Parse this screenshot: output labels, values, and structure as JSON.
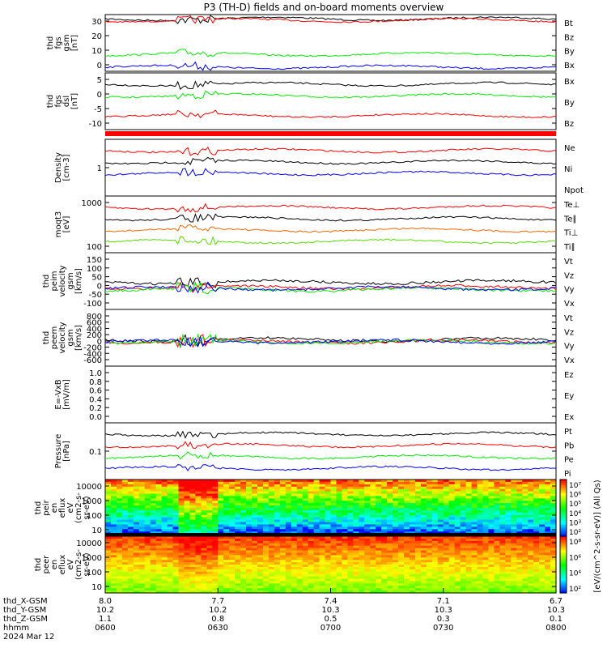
{
  "title": "P3 (TH-D) fields and on-board moments overview",
  "colors": {
    "black": "#000000",
    "red": "#ff0000",
    "green": "#00ee00",
    "blue": "#0000ff",
    "orange": "#ff6600",
    "lightgreen": "#55dd00"
  },
  "chart_data": [
    {
      "type": "line",
      "ylabel": [
        "thd",
        "fgs",
        "gsm",
        "[nT]"
      ],
      "yticks": [
        "30",
        "20",
        "10",
        "0"
      ],
      "ylim": [
        -4,
        36
      ],
      "legend": [
        {
          "name": "Bt",
          "color": "#000000"
        },
        {
          "name": "Bz",
          "color": "#ff0000"
        },
        {
          "name": "By",
          "color": "#00ee00"
        },
        {
          "name": "Bx",
          "color": "#0000ff"
        }
      ],
      "series": [
        {
          "name": "Bt",
          "level": 33
        },
        {
          "name": "Bz",
          "level": 32
        },
        {
          "name": "By",
          "level": 8
        },
        {
          "name": "Bx",
          "level": -1
        }
      ]
    },
    {
      "type": "line",
      "ylabel": [
        "thd",
        "fgs",
        "dsl",
        "[nT]"
      ],
      "yticks": [
        "5",
        "0",
        "-5",
        "-10"
      ],
      "ylim": [
        -14,
        6
      ],
      "legend": [
        {
          "name": "Bx",
          "color": "#000000"
        },
        {
          "name": "By",
          "color": "#00ee00"
        },
        {
          "name": "Bz",
          "color": "#ff0000"
        }
      ],
      "series": [
        {
          "name": "Bx",
          "level": 2
        },
        {
          "name": "By",
          "level": -2
        },
        {
          "name": "Bz",
          "level": -9
        }
      ]
    },
    {
      "type": "line",
      "ylabel": [
        "Density",
        "[cm-3]"
      ],
      "yticks": [
        "1"
      ],
      "log": true,
      "legend": [
        {
          "name": "Ne",
          "color": "#ff0000"
        },
        {
          "name": "Ni",
          "color": "#000000"
        },
        {
          "name": "Npot",
          "color": "#0000ff"
        }
      ],
      "series": [
        {
          "name": "Ne",
          "level": 0.55
        },
        {
          "name": "Ni",
          "level": 0.3
        },
        {
          "name": "Npot",
          "level": 0.4
        }
      ]
    },
    {
      "type": "line",
      "ylabel": [
        "moqt3",
        "[eV]"
      ],
      "yticks": [
        "1000",
        "100"
      ],
      "log": true,
      "legend": [
        {
          "name": "Te⊥",
          "color": "#ff0000"
        },
        {
          "name": "Te∥",
          "color": "#000000"
        },
        {
          "name": "Ti⊥",
          "color": "#ff6600"
        },
        {
          "name": "Ti∥",
          "color": "#55dd00"
        }
      ],
      "series": [
        {
          "name": "Te⊥",
          "level": 3000
        },
        {
          "name": "Te∥",
          "level": 2500
        },
        {
          "name": "Ti⊥",
          "level": 300
        },
        {
          "name": "Ti∥",
          "level": 250
        }
      ]
    },
    {
      "type": "line",
      "ylabel": [
        "thd",
        "peim",
        "velocity",
        "gsm",
        "[km/s]"
      ],
      "yticks": [
        "150",
        "100",
        "50",
        "0",
        "-50",
        "-100"
      ],
      "ylim": [
        -100,
        170
      ],
      "legend": [
        {
          "name": "Vt",
          "color": "#000000"
        },
        {
          "name": "Vz",
          "color": "#ff0000"
        },
        {
          "name": "Vy",
          "color": "#00ee00"
        },
        {
          "name": "Vx",
          "color": "#0000ff"
        }
      ],
      "series": [
        {
          "name": "Vt",
          "level": 30
        },
        {
          "name": "Vz",
          "level": 5
        },
        {
          "name": "Vy",
          "level": -5
        },
        {
          "name": "Vx",
          "level": 0
        }
      ]
    },
    {
      "type": "line",
      "ylabel": [
        "thd",
        "peem",
        "velocity",
        "gsm",
        "[km/s]"
      ],
      "yticks": [
        "800",
        "600",
        "400",
        "200",
        "0",
        "-200",
        "-400",
        "-600"
      ],
      "ylim": [
        -650,
        850
      ],
      "legend": [
        {
          "name": "Vt",
          "color": "#000000"
        },
        {
          "name": "Vz",
          "color": "#ff0000"
        },
        {
          "name": "Vy",
          "color": "#00ee00"
        },
        {
          "name": "Vx",
          "color": "#0000ff"
        }
      ],
      "series": [
        {
          "name": "Vt",
          "level": 50
        },
        {
          "name": "Vz",
          "level": 0
        },
        {
          "name": "Vy",
          "level": -10
        },
        {
          "name": "Vx",
          "level": 0
        }
      ]
    },
    {
      "type": "line",
      "ylabel": [
        "E=-VxB",
        "[mV/m]"
      ],
      "yticks": [
        "1.0",
        "0.8",
        "0.6",
        "0.4",
        "0.2",
        "0.0"
      ],
      "ylim": [
        0,
        1
      ],
      "legend": [
        {
          "name": "Ez",
          "color": "#ff0000"
        },
        {
          "name": "Ey",
          "color": "#00ee00"
        },
        {
          "name": "Ex",
          "color": "#0000ff"
        }
      ],
      "series": []
    },
    {
      "type": "line",
      "ylabel": [
        "Pressure",
        "[nPa]"
      ],
      "yticks": [
        "0.1"
      ],
      "log": true,
      "legend": [
        {
          "name": "Pt",
          "color": "#000000"
        },
        {
          "name": "Pb",
          "color": "#ff0000"
        },
        {
          "name": "Pe",
          "color": "#00ee00"
        },
        {
          "name": "Pi",
          "color": "#0000ff"
        }
      ],
      "series": [
        {
          "name": "Pt",
          "level": 0.6
        },
        {
          "name": "Pb",
          "level": 0.5
        },
        {
          "name": "Pe",
          "level": 0.1
        },
        {
          "name": "Pi",
          "level": 0.02
        }
      ]
    },
    {
      "type": "heatmap",
      "ylabel": [
        "thd",
        "peir",
        "en",
        "eflux",
        "eV",
        "(cm2-s-",
        "sr-eV)"
      ],
      "yticks": [
        "10000",
        "1000",
        "100",
        "10"
      ]
    },
    {
      "type": "heatmap",
      "ylabel": [
        "thd",
        "peer",
        "en",
        "eflux",
        "eV",
        "(cm2-s-",
        "sr-eV)"
      ],
      "yticks": [
        "10000",
        "1000",
        "100",
        "10"
      ]
    }
  ],
  "colorbar": {
    "ticks1": [
      "10⁷",
      "10⁶",
      "10⁵",
      "10⁴",
      "10³",
      "10²"
    ],
    "ticks2": [
      "10⁸",
      "10⁶",
      "10⁴",
      "10²"
    ],
    "label": "[eV/(cm^2-s-sr-eV)] (All Qs)"
  },
  "xaxis": {
    "row_labels": [
      "thd_X-GSM",
      "thd_Y-GSM",
      "thd_Z-GSM",
      "hhmm",
      "2024 Mar 12"
    ],
    "ticks": [
      {
        "x": "8.0",
        "y": "10.2",
        "z": "1.1",
        "t": "0600"
      },
      {
        "x": "7.7",
        "y": "10.2",
        "z": "0.8",
        "t": "0630"
      },
      {
        "x": "7.4",
        "y": "10.3",
        "z": "0.5",
        "t": "0700"
      },
      {
        "x": "7.1",
        "y": "10.3",
        "z": "0.3",
        "t": "0730"
      },
      {
        "x": "6.7",
        "y": "10.3",
        "z": "0.1",
        "t": "0800"
      }
    ]
  }
}
